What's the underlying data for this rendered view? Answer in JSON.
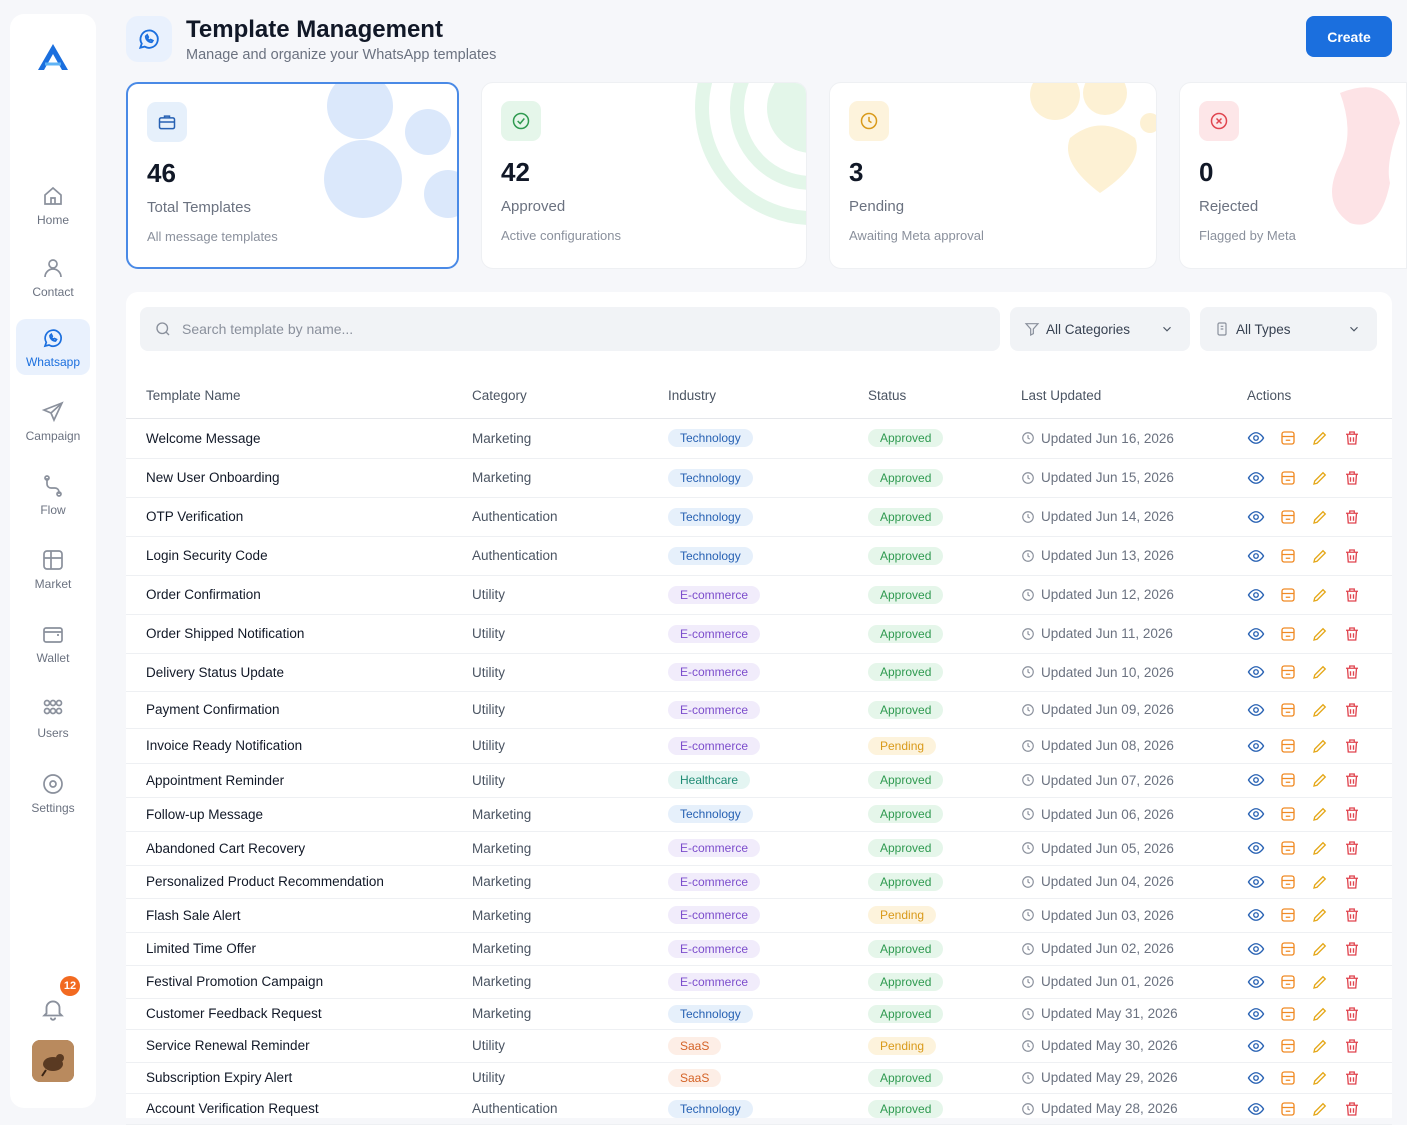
{
  "header": {
    "title": "Template Management",
    "subtitle": "Manage and organize your WhatsApp templates",
    "create_label": "Create"
  },
  "sidebar": {
    "items": [
      {
        "label": "Home",
        "icon": "home-icon"
      },
      {
        "label": "Contact",
        "icon": "user-icon"
      },
      {
        "label": "Whatsapp",
        "icon": "whatsapp-icon"
      },
      {
        "label": "Campaign",
        "icon": "send-icon"
      },
      {
        "label": "Flow",
        "icon": "flow-icon"
      },
      {
        "label": "Market",
        "icon": "market-icon"
      },
      {
        "label": "Wallet",
        "icon": "wallet-icon"
      },
      {
        "label": "Users",
        "icon": "users-icon"
      },
      {
        "label": "Settings",
        "icon": "settings-icon"
      }
    ],
    "notification_count": "12"
  },
  "stats": [
    {
      "value": "46",
      "label": "Total Templates",
      "desc": "All message templates",
      "color": "#2761b3"
    },
    {
      "value": "42",
      "label": "Approved",
      "desc": "Active configurations",
      "color": "#2f9a50"
    },
    {
      "value": "3",
      "label": "Pending",
      "desc": "Awaiting Meta approval",
      "color": "#d99a1a"
    },
    {
      "value": "0",
      "label": "Rejected",
      "desc": "Flagged by Meta",
      "color": "#e0454f"
    }
  ],
  "filters": {
    "search_placeholder": "Search template by name...",
    "category": "All Categories",
    "type": "All Types"
  },
  "table": {
    "columns": [
      "Template Name",
      "Category",
      "Industry",
      "Status",
      "Last Updated",
      "Actions"
    ],
    "rows": [
      [
        "Welcome Message",
        "Marketing",
        "Technology",
        "Approved",
        "Updated Jun 16, 2026"
      ],
      [
        "New User Onboarding",
        "Marketing",
        "Technology",
        "Approved",
        "Updated Jun 15, 2026"
      ],
      [
        "OTP Verification",
        "Authentication",
        "Technology",
        "Approved",
        "Updated Jun 14, 2026"
      ],
      [
        "Login Security Code",
        "Authentication",
        "Technology",
        "Approved",
        "Updated Jun 13, 2026"
      ],
      [
        "Order Confirmation",
        "Utility",
        "E-commerce",
        "Approved",
        "Updated Jun 12, 2026"
      ],
      [
        "Order Shipped Notification",
        "Utility",
        "E-commerce",
        "Approved",
        "Updated Jun 11, 2026"
      ],
      [
        "Delivery Status Update",
        "Utility",
        "E-commerce",
        "Approved",
        "Updated Jun 10, 2026"
      ],
      [
        "Payment Confirmation",
        "Utility",
        "E-commerce",
        "Approved",
        "Updated Jun 09, 2026"
      ],
      [
        "Invoice Ready Notification",
        "Utility",
        "E-commerce",
        "Pending",
        "Updated Jun 08, 2026"
      ],
      [
        "Appointment Reminder",
        "Utility",
        "Healthcare",
        "Approved",
        "Updated Jun 07, 2026"
      ],
      [
        "Follow-up Message",
        "Marketing",
        "Technology",
        "Approved",
        "Updated Jun 06, 2026"
      ],
      [
        "Abandoned Cart Recovery",
        "Marketing",
        "E-commerce",
        "Approved",
        "Updated Jun 05, 2026"
      ],
      [
        "Personalized Product Recommendation",
        "Marketing",
        "E-commerce",
        "Approved",
        "Updated Jun 04, 2026"
      ],
      [
        "Flash Sale Alert",
        "Marketing",
        "E-commerce",
        "Pending",
        "Updated Jun 03, 2026"
      ],
      [
        "Limited Time Offer",
        "Marketing",
        "E-commerce",
        "Approved",
        "Updated Jun 02, 2026"
      ],
      [
        "Festival Promotion Campaign",
        "Marketing",
        "E-commerce",
        "Approved",
        "Updated Jun 01, 2026"
      ],
      [
        "Customer Feedback Request",
        "Marketing",
        "Technology",
        "Approved",
        "Updated May 31, 2026"
      ],
      [
        "Service Renewal Reminder",
        "Utility",
        "SaaS",
        "Pending",
        "Updated May 30, 2026"
      ],
      [
        "Subscription Expiry Alert",
        "Utility",
        "SaaS",
        "Approved",
        "Updated May 29, 2026"
      ],
      [
        "Account Verification Request",
        "Authentication",
        "Technology",
        "Approved",
        "Updated May 28, 2026"
      ]
    ]
  }
}
